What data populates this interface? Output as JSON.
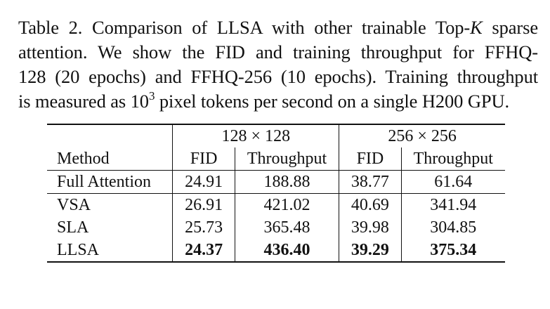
{
  "caption": {
    "label": "Table 2.",
    "line1_pre": "Comparison of LLSA with other trainable Top-",
    "line1_k": "K",
    "line1_post": "sparse",
    "line2": "attention. We show the FID and training throughput for FFHQ-",
    "line3": "128 (20 epochs) and FFHQ-256 (10 epochs). Training throughput",
    "line4_pre": "is measured as 10",
    "line4_sup": "3",
    "line4_post": " pixel tokens per second on a single H200 GPU."
  },
  "table": {
    "group_headers": [
      "128 × 128",
      "256 × 256"
    ],
    "column_headers": [
      "Method",
      "FID",
      "Throughput",
      "FID",
      "Throughput"
    ],
    "rows": [
      {
        "method": "Full Attention",
        "values": [
          "24.91",
          "188.88",
          "38.77",
          "61.64"
        ],
        "bold": false
      },
      {
        "method": "VSA",
        "values": [
          "26.91",
          "421.02",
          "40.69",
          "341.94"
        ],
        "bold": false
      },
      {
        "method": "SLA",
        "values": [
          "25.73",
          "365.48",
          "39.98",
          "304.85"
        ],
        "bold": false
      },
      {
        "method": "LLSA",
        "values": [
          "24.37",
          "436.40",
          "39.29",
          "375.34"
        ],
        "bold": true
      }
    ]
  }
}
